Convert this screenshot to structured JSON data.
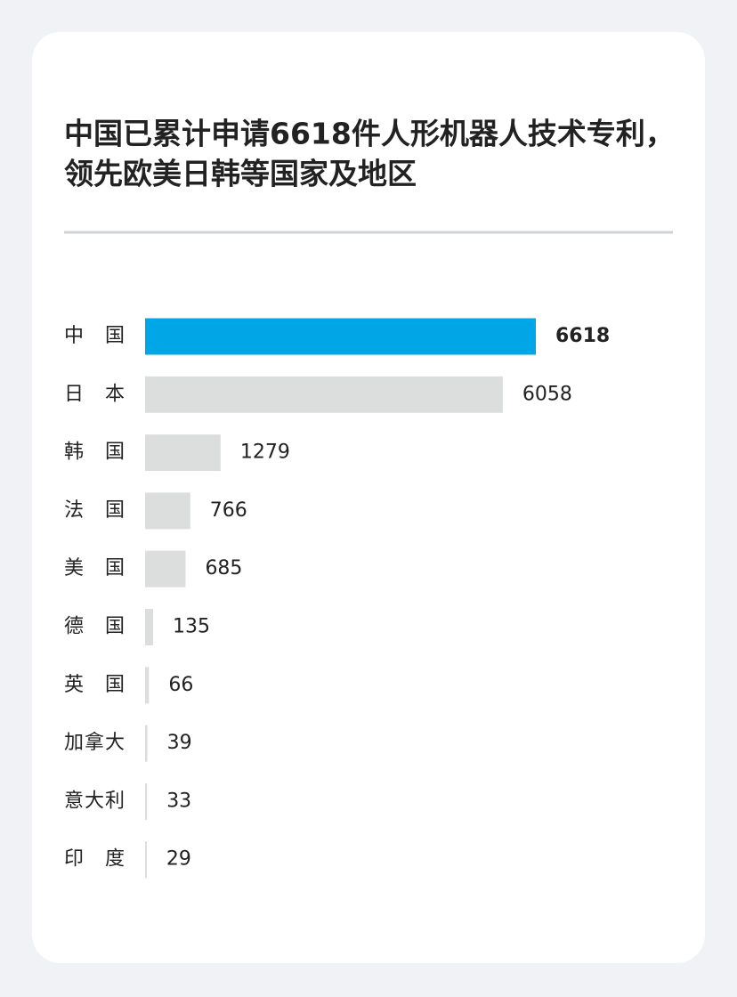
{
  "chart_data": {
    "type": "bar",
    "orientation": "horizontal",
    "title": [
      "中国已累计申请6618件人形机器人技术专利，",
      "领先欧美日韩等国家及地区"
    ],
    "categories": [
      "中国",
      "日本",
      "韩国",
      "法国",
      "美国",
      "德国",
      "英国",
      "加拿大",
      "意大利",
      "印度"
    ],
    "values": [
      6618,
      6058,
      1279,
      766,
      685,
      135,
      66,
      39,
      33,
      29
    ],
    "color": "#dcdddd",
    "highlight": {
      "index": 0,
      "color": "#00a6e6"
    }
  }
}
